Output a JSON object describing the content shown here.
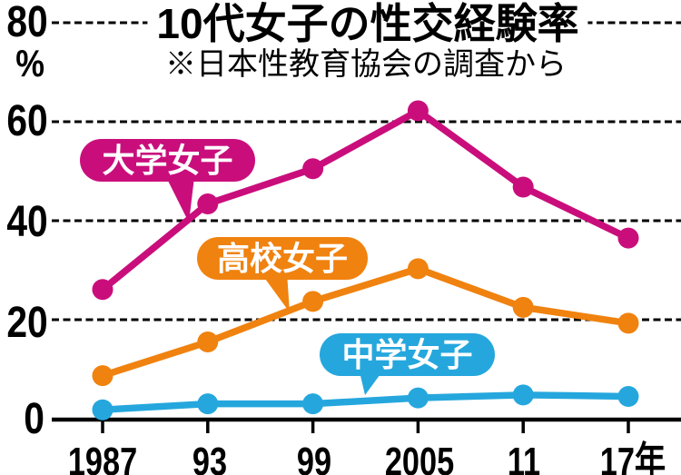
{
  "title": "10代女子の性交経験率",
  "subtitle": "※日本性教育協会の調査から",
  "chart_data": {
    "type": "line",
    "categories": [
      "1987",
      "93",
      "99",
      "2005",
      "11",
      "17年"
    ],
    "y_unit": "%",
    "yticks": [
      0,
      20,
      40,
      60,
      80
    ],
    "ylim": [
      0,
      80
    ],
    "grid": "dashed-horizontal",
    "legend_position": "inline-speech-bubbles",
    "series": [
      {
        "name": "大学女子",
        "color": "#c90e7c",
        "values": [
          26.1,
          43.4,
          50.5,
          62.2,
          46.8,
          36.5
        ]
      },
      {
        "name": "高校女子",
        "color": "#f0820f",
        "values": [
          8.7,
          15.5,
          23.7,
          30.3,
          22.5,
          19.3
        ]
      },
      {
        "name": "中学女子",
        "color": "#25a7dd",
        "values": [
          1.8,
          3.0,
          3.0,
          4.2,
          4.8,
          4.5
        ]
      }
    ]
  }
}
